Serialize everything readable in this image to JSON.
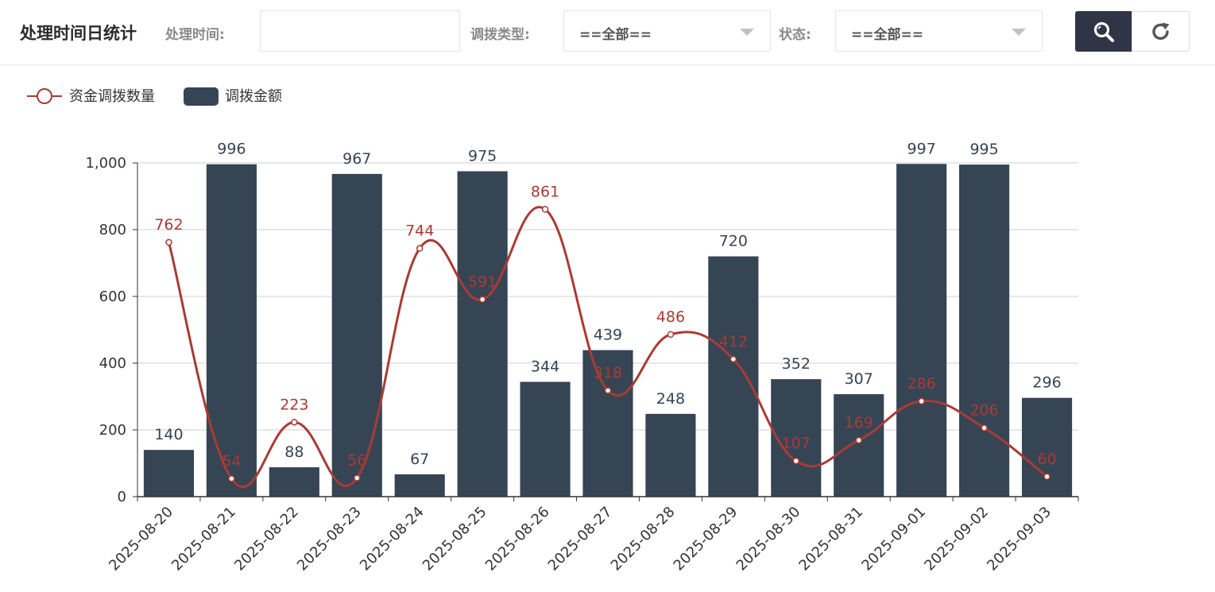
{
  "header": {
    "title": "处理时间日统计",
    "filters": {
      "time_label": "处理时间:",
      "time_value": "",
      "type_label": "调拨类型:",
      "type_value": "==全部==",
      "status_label": "状态:",
      "status_value": "==全部=="
    },
    "buttons": {
      "search_icon": "search-icon",
      "reset_icon": "refresh-icon"
    }
  },
  "colors": {
    "bar": "#364554",
    "line": "#a83b35",
    "toolbar_button": "#2f3447"
  },
  "chart_data": {
    "type": "bar",
    "categories": [
      "2025-08-20",
      "2025-08-21",
      "2025-08-22",
      "2025-08-23",
      "2025-08-24",
      "2025-08-25",
      "2025-08-26",
      "2025-08-27",
      "2025-08-28",
      "2025-08-29",
      "2025-08-30",
      "2025-08-31",
      "2025-09-01",
      "2025-09-02",
      "2025-09-03"
    ],
    "series": [
      {
        "name": "调拨金额",
        "type": "bar",
        "values": [
          140,
          996,
          88,
          967,
          67,
          975,
          344,
          439,
          248,
          720,
          352,
          307,
          997,
          995,
          296
        ]
      },
      {
        "name": "资金调拨数量",
        "type": "line",
        "smooth": true,
        "values": [
          762,
          54,
          223,
          56,
          744,
          591,
          861,
          318,
          486,
          412,
          107,
          169,
          286,
          206,
          60
        ]
      }
    ],
    "ylim": [
      0,
      1000
    ],
    "yticks": [
      "0",
      "200",
      "400",
      "600",
      "800",
      "1,000"
    ],
    "grid": true,
    "legend": "top-left"
  }
}
